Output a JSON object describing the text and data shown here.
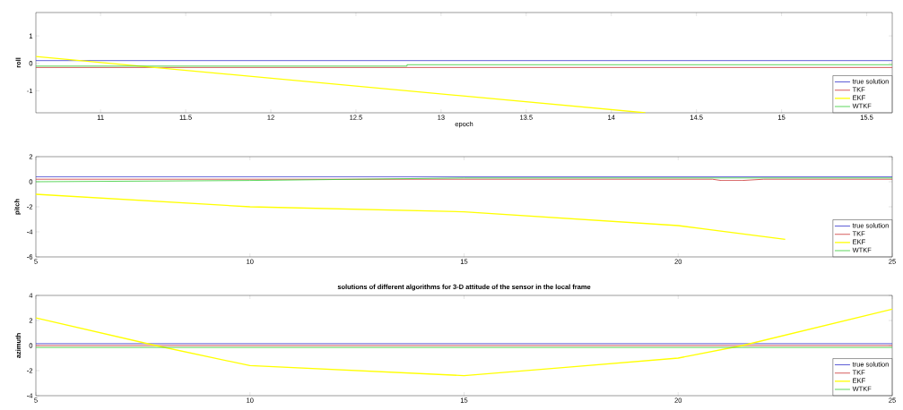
{
  "chart_data": [
    {
      "type": "line",
      "xlabel": "epoch",
      "ylabel": "roll",
      "xlim": [
        10.62,
        15.65
      ],
      "ylim": [
        -1.8,
        1.85
      ],
      "xticks": [
        11,
        11.5,
        12,
        12.5,
        13,
        13.5,
        14,
        14.5,
        15,
        15.5
      ],
      "yticks": [
        -1,
        0,
        1
      ],
      "legend": "bottom right",
      "grid": false,
      "series": [
        {
          "name": "true solution",
          "color": "#3333cc",
          "x": [
            10.62,
            15.65
          ],
          "values": [
            0.1,
            0.1
          ]
        },
        {
          "name": "TKF",
          "color": "#cc3333",
          "x": [
            10.62,
            15.65
          ],
          "values": [
            -0.15,
            -0.15
          ]
        },
        {
          "name": "EKF",
          "color": "#ffff00",
          "x": [
            10.62,
            14.2
          ],
          "values": [
            0.25,
            -1.8
          ]
        },
        {
          "name": "WTKF",
          "color": "#33cc33",
          "x": [
            10.62,
            12.8,
            12.8,
            15.65
          ],
          "values": [
            -0.1,
            -0.1,
            -0.05,
            -0.05
          ]
        }
      ]
    },
    {
      "type": "line",
      "ylabel": "pitch",
      "xlim": [
        5,
        25
      ],
      "ylim": [
        -6,
        2
      ],
      "xticks": [
        5,
        10,
        15,
        20,
        25
      ],
      "yticks": [
        -6,
        -4,
        -2,
        0,
        2
      ],
      "legend": "bottom right",
      "grid": false,
      "series": [
        {
          "name": "true solution",
          "color": "#3333cc",
          "x": [
            5,
            25
          ],
          "values": [
            0.4,
            0.4
          ]
        },
        {
          "name": "TKF",
          "color": "#cc3333",
          "x": [
            5,
            20.8,
            21,
            21.5,
            22,
            25
          ],
          "values": [
            0.2,
            0.2,
            0.1,
            0.1,
            0.2,
            0.2
          ]
        },
        {
          "name": "EKF",
          "color": "#ffff00",
          "x": [
            5,
            10,
            15,
            20,
            22.5
          ],
          "values": [
            -1,
            -2,
            -2.4,
            -3.5,
            -4.6
          ]
        },
        {
          "name": "WTKF",
          "color": "#33cc33",
          "x": [
            5,
            10,
            15,
            20,
            25
          ],
          "values": [
            0,
            0.1,
            0.3,
            0.3,
            0.3
          ]
        }
      ]
    },
    {
      "type": "line",
      "title": "solutions of different algorithms for 3-D attitude of the sensor in the local frame",
      "ylabel": "azimuth",
      "xlim": [
        5,
        25
      ],
      "ylim": [
        -4,
        4
      ],
      "xticks": [
        5,
        10,
        15,
        20,
        25
      ],
      "yticks": [
        -4,
        -2,
        0,
        2,
        4
      ],
      "legend": "bottom right",
      "grid": false,
      "series": [
        {
          "name": "true solution",
          "color": "#3333cc",
          "x": [
            5,
            25
          ],
          "values": [
            0.15,
            0.15
          ]
        },
        {
          "name": "TKF",
          "color": "#cc3333",
          "x": [
            5,
            25
          ],
          "values": [
            0,
            0
          ]
        },
        {
          "name": "EKF",
          "color": "#ffff00",
          "x": [
            5,
            7.8,
            10,
            15,
            17.5,
            20,
            21.5,
            25
          ],
          "values": [
            2.2,
            0,
            -1.6,
            -2.4,
            -1.7,
            -1,
            0,
            2.9
          ]
        },
        {
          "name": "WTKF",
          "color": "#33cc33",
          "x": [
            5,
            25
          ],
          "values": [
            -0.15,
            -0.15
          ]
        }
      ]
    }
  ]
}
